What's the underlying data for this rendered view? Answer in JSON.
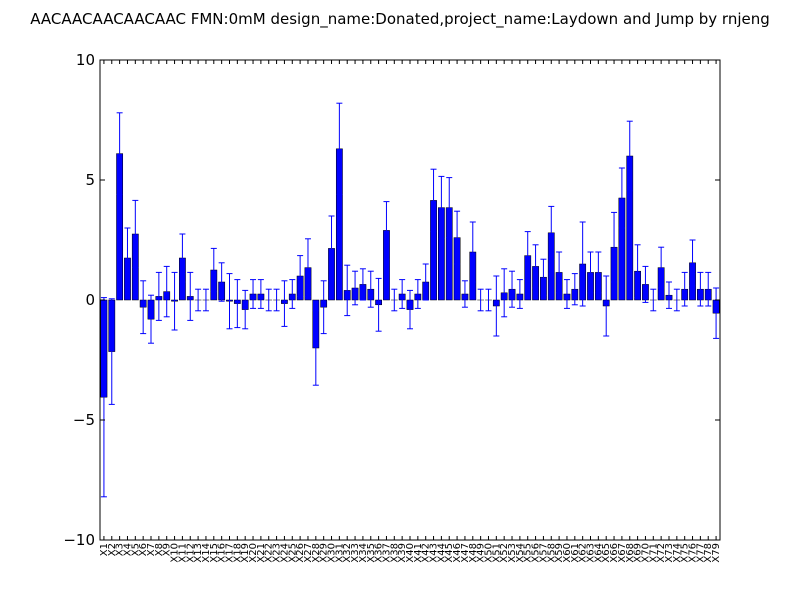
{
  "chart_data": {
    "type": "bar",
    "title": "AACAACAACAACAAC  FMN:0mM  design_name:Donated,project_name:Laydown and Jump by rnjeng",
    "xlabel": "",
    "ylabel": "",
    "ylim": [
      -10,
      10
    ],
    "yticks": [
      "−10",
      "−5",
      "0",
      "5",
      "10"
    ],
    "ytick_values": [
      -10,
      -5,
      0,
      5,
      10
    ],
    "bar_color": "#0000ff",
    "error_color": "#0000ff",
    "grid": false,
    "categories": [
      "X1",
      "X2",
      "X3",
      "X4",
      "X5",
      "X6",
      "X7",
      "X8",
      "X9",
      "X10",
      "X11",
      "X12",
      "X13",
      "X14",
      "X15",
      "X16",
      "X17",
      "X18",
      "X19",
      "X20",
      "X21",
      "X22",
      "X23",
      "X24",
      "X25",
      "X26",
      "X27",
      "X28",
      "X29",
      "X30",
      "X31",
      "X32",
      "X33",
      "X34",
      "X35",
      "X36",
      "X37",
      "X38",
      "X39",
      "X40",
      "X41",
      "X42",
      "X43",
      "X44",
      "X45",
      "X46",
      "X47",
      "X48",
      "X49",
      "X50",
      "X51",
      "X52",
      "X53",
      "X54",
      "X55",
      "X56",
      "X57",
      "X58",
      "X59",
      "X60",
      "X61",
      "X62",
      "X63",
      "X64",
      "X65",
      "X66",
      "X67",
      "X68",
      "X69",
      "X70",
      "X71",
      "X72",
      "X73",
      "X74",
      "X75",
      "X76",
      "X77",
      "X78",
      "X79"
    ],
    "values": [
      -4.05,
      -2.15,
      6.1,
      1.75,
      2.75,
      -0.3,
      -0.8,
      0.15,
      0.35,
      -0.05,
      1.75,
      0.15,
      0.0,
      0.0,
      1.25,
      0.75,
      -0.05,
      -0.15,
      -0.4,
      0.25,
      0.25,
      0.0,
      0.0,
      -0.15,
      0.25,
      1.0,
      1.35,
      -2.0,
      -0.3,
      2.15,
      6.3,
      0.4,
      0.5,
      0.65,
      0.45,
      -0.2,
      2.9,
      0.0,
      0.25,
      -0.4,
      0.25,
      0.75,
      4.15,
      3.85,
      3.85,
      2.6,
      0.25,
      2.0,
      0.0,
      0.0,
      -0.25,
      0.3,
      0.45,
      0.25,
      1.85,
      1.4,
      0.95,
      2.8,
      1.15,
      0.25,
      0.45,
      1.5,
      1.15,
      1.15,
      -0.25,
      2.2,
      4.25,
      6.0,
      1.2,
      0.65,
      0.0,
      1.35,
      0.2,
      0.0,
      0.45,
      1.55,
      0.45,
      0.45,
      -0.55
    ],
    "errors": [
      4.15,
      2.2,
      1.7,
      1.25,
      1.4,
      1.1,
      1.0,
      1.0,
      1.05,
      1.2,
      1.0,
      1.0,
      0.45,
      0.45,
      0.9,
      0.8,
      1.15,
      1.0,
      0.8,
      0.6,
      0.6,
      0.45,
      0.45,
      0.95,
      0.6,
      0.85,
      1.2,
      1.55,
      1.1,
      1.35,
      1.9,
      1.05,
      0.7,
      0.65,
      0.75,
      1.1,
      1.2,
      0.45,
      0.6,
      0.8,
      0.6,
      0.75,
      1.3,
      1.3,
      1.25,
      1.1,
      0.55,
      1.25,
      0.45,
      0.45,
      1.25,
      1.0,
      0.75,
      0.6,
      1.0,
      0.9,
      0.75,
      1.1,
      0.85,
      0.6,
      0.65,
      1.75,
      0.85,
      0.85,
      1.25,
      1.45,
      1.25,
      1.45,
      1.1,
      0.75,
      0.45,
      0.85,
      0.55,
      0.45,
      0.7,
      0.95,
      0.7,
      0.7,
      1.05
    ]
  }
}
